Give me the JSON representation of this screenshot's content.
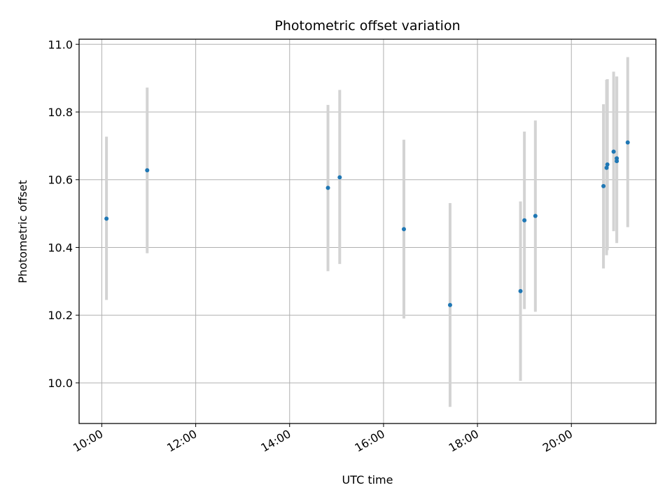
{
  "chart_data": {
    "type": "scatter",
    "title": "Photometric offset variation",
    "xlabel": "UTC time",
    "ylabel": "Photometric offset",
    "x_ticks": [
      "10:00",
      "12:00",
      "14:00",
      "16:00",
      "18:00",
      "20:00"
    ],
    "y_ticks": [
      "10.0",
      "10.2",
      "10.4",
      "10.6",
      "10.8",
      "11.0"
    ],
    "xlim": [
      "09:31",
      "21:48"
    ],
    "ylim": [
      9.88,
      11.015
    ],
    "grid": true,
    "marker_color": "#1f77b4",
    "errorbar_color": "#d3d3d3",
    "points": [
      {
        "x": "10:06",
        "y": 10.485,
        "lo": 10.245,
        "hi": 10.727
      },
      {
        "x": "10:58",
        "y": 10.628,
        "lo": 10.383,
        "hi": 10.872
      },
      {
        "x": "14:49",
        "y": 10.576,
        "lo": 10.33,
        "hi": 10.821
      },
      {
        "x": "15:04",
        "y": 10.607,
        "lo": 10.351,
        "hi": 10.865
      },
      {
        "x": "16:26",
        "y": 10.454,
        "lo": 10.19,
        "hi": 10.718
      },
      {
        "x": "17:25",
        "y": 10.23,
        "lo": 9.929,
        "hi": 10.531
      },
      {
        "x": "18:55",
        "y": 10.271,
        "lo": 10.006,
        "hi": 10.536
      },
      {
        "x": "19:00",
        "y": 10.48,
        "lo": 10.218,
        "hi": 10.742
      },
      {
        "x": "19:14",
        "y": 10.493,
        "lo": 10.21,
        "hi": 10.775
      },
      {
        "x": "20:41",
        "y": 10.581,
        "lo": 10.338,
        "hi": 10.823
      },
      {
        "x": "20:45",
        "y": 10.635,
        "lo": 10.377,
        "hi": 10.895
      },
      {
        "x": "20:46",
        "y": 10.645,
        "lo": 10.392,
        "hi": 10.897
      },
      {
        "x": "20:54",
        "y": 10.683,
        "lo": 10.448,
        "hi": 10.919
      },
      {
        "x": "20:58",
        "y": 10.655,
        "lo": 10.413,
        "hi": 10.903
      },
      {
        "x": "20:58",
        "y": 10.663,
        "lo": 10.42,
        "hi": 10.905
      },
      {
        "x": "21:12",
        "y": 10.71,
        "lo": 10.46,
        "hi": 10.962
      }
    ]
  }
}
